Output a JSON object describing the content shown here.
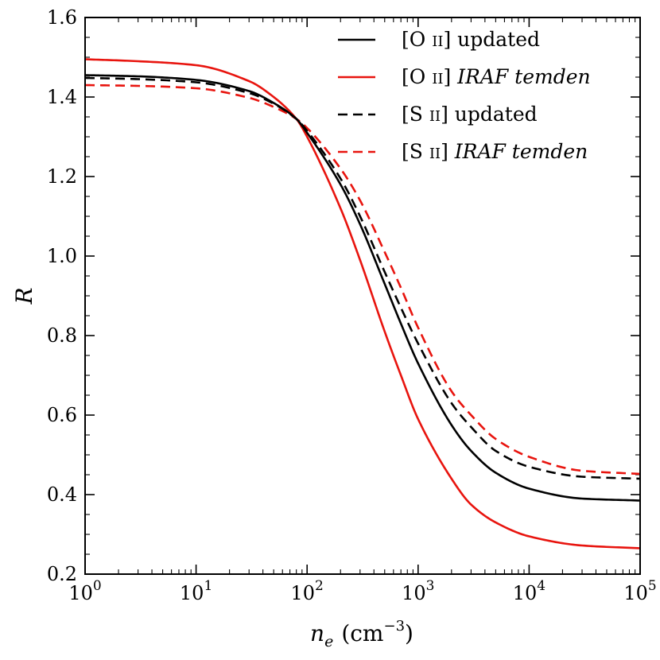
{
  "chart_data": {
    "type": "line",
    "title": "",
    "xlabel": "n_e (cm^-3)",
    "ylabel": "R",
    "xscale": "log",
    "xlim": [
      1,
      100000
    ],
    "ylim": [
      0.2,
      1.6
    ],
    "grid": false,
    "legend_position": "top-right",
    "x_ticks": [
      {
        "value": 1,
        "base": "10",
        "exp": "0"
      },
      {
        "value": 10,
        "base": "10",
        "exp": "1"
      },
      {
        "value": 100,
        "base": "10",
        "exp": "2"
      },
      {
        "value": 1000,
        "base": "10",
        "exp": "3"
      },
      {
        "value": 10000,
        "base": "10",
        "exp": "4"
      },
      {
        "value": 100000,
        "base": "10",
        "exp": "5"
      }
    ],
    "y_ticks": [
      "0.2",
      "0.4",
      "0.6",
      "0.8",
      "1.0",
      "1.2",
      "1.4",
      "1.6"
    ],
    "xlabel_parts": {
      "var": "n",
      "sub": "e",
      "unit": "(cm",
      "exp": "−3",
      "close": ")"
    },
    "series": [
      {
        "name": "[O II] updated",
        "label_prefix": "[O ",
        "label_ion": "II",
        "label_suffix": "] ",
        "label_tail": "updated",
        "label_tail_italic": false,
        "color": "#000000",
        "dash": "solid",
        "x": [
          1,
          3,
          10,
          30,
          50,
          80,
          100,
          200,
          300,
          500,
          700,
          1000,
          2000,
          3000,
          5000,
          10000,
          30000,
          100000
        ],
        "y": [
          1.455,
          1.452,
          1.443,
          1.415,
          1.385,
          1.345,
          1.31,
          1.18,
          1.08,
          0.93,
          0.83,
          0.73,
          0.575,
          0.51,
          0.455,
          0.415,
          0.39,
          0.385
        ]
      },
      {
        "name": "[O II] IRAF temden",
        "label_prefix": "[O ",
        "label_ion": "II",
        "label_suffix": "] ",
        "label_tail": "IRAF temden",
        "label_tail_italic": true,
        "color": "#e8140e",
        "dash": "solid",
        "x": [
          1,
          3,
          10,
          30,
          50,
          80,
          100,
          200,
          300,
          500,
          700,
          1000,
          2000,
          3000,
          5000,
          10000,
          30000,
          100000
        ],
        "y": [
          1.495,
          1.49,
          1.48,
          1.44,
          1.4,
          1.345,
          1.3,
          1.12,
          0.99,
          0.81,
          0.7,
          0.59,
          0.44,
          0.375,
          0.33,
          0.295,
          0.272,
          0.265
        ]
      },
      {
        "name": "[S II] updated",
        "label_prefix": "[S ",
        "label_ion": "II",
        "label_suffix": "] ",
        "label_tail": "updated",
        "label_tail_italic": false,
        "color": "#000000",
        "dash": "dashed",
        "x": [
          1,
          3,
          10,
          30,
          50,
          80,
          100,
          200,
          300,
          500,
          700,
          1000,
          2000,
          3000,
          5000,
          10000,
          30000,
          100000
        ],
        "y": [
          1.448,
          1.445,
          1.437,
          1.41,
          1.383,
          1.345,
          1.315,
          1.195,
          1.1,
          0.96,
          0.87,
          0.78,
          0.63,
          0.57,
          0.51,
          0.47,
          0.445,
          0.44
        ]
      },
      {
        "name": "[S II] IRAF temden",
        "label_prefix": "[S ",
        "label_ion": "II",
        "label_suffix": "] ",
        "label_tail": "IRAF temden",
        "label_tail_italic": true,
        "color": "#e8140e",
        "dash": "dashed",
        "x": [
          1,
          3,
          10,
          30,
          50,
          80,
          100,
          200,
          300,
          500,
          700,
          1000,
          2000,
          3000,
          5000,
          10000,
          30000,
          100000
        ],
        "y": [
          1.43,
          1.428,
          1.422,
          1.398,
          1.375,
          1.345,
          1.322,
          1.22,
          1.14,
          1.01,
          0.92,
          0.82,
          0.66,
          0.6,
          0.54,
          0.495,
          0.46,
          0.452
        ]
      }
    ]
  }
}
